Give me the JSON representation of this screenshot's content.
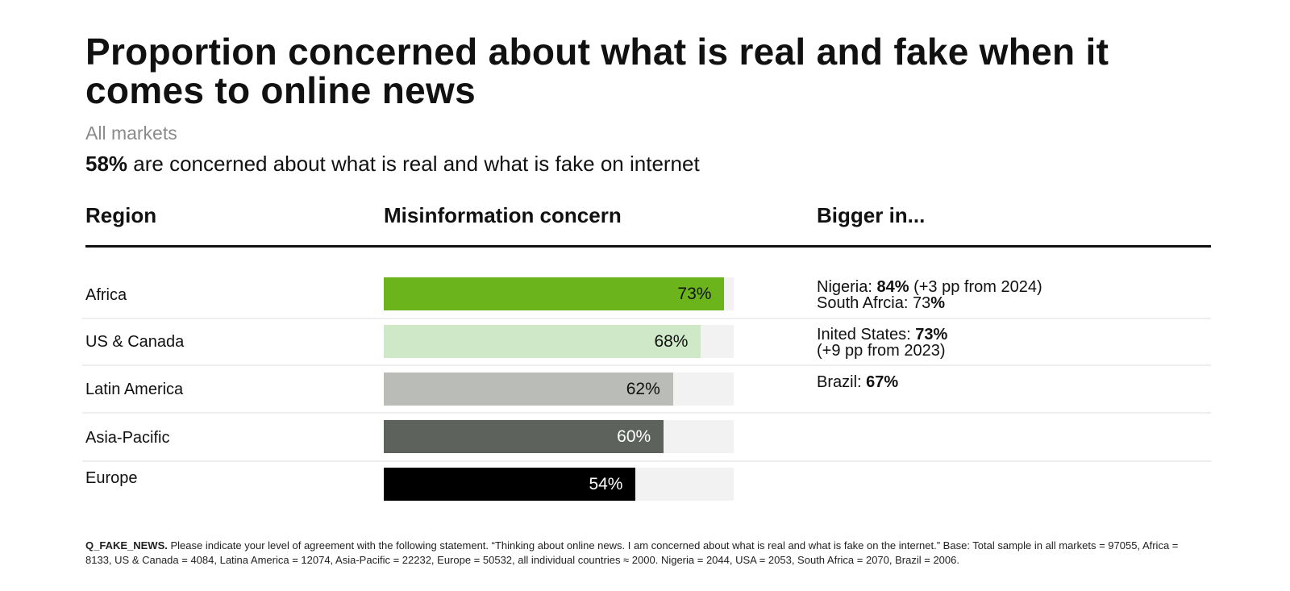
{
  "header": {
    "title": "Proportion concerned about what is real and fake when it comes to online news",
    "subtitle": "All markets",
    "summary_value": "58%",
    "summary_text": " are concerned about what is real and what is fake on internet"
  },
  "table": {
    "columns": [
      "Region",
      "Misinformation concern",
      "Bigger in..."
    ],
    "rows": [
      {
        "region": "Africa",
        "value": 73,
        "label": "73%",
        "bar_color": "#6bb41b",
        "label_color": "#111111",
        "bigger": [
          {
            "pre": "Nigeria: ",
            "bold": "84%",
            "post": " (+3 pp from 2024)"
          },
          {
            "pre": "South Afrcia: 73",
            "bold": "%",
            "post": ""
          }
        ]
      },
      {
        "region": "US & Canada",
        "value": 68,
        "label": "68%",
        "bar_color": "#cfe8c7",
        "label_color": "#111111",
        "bigger": [
          {
            "pre": "Inited States: ",
            "bold": "73%",
            "post": ""
          },
          {
            "pre": "(+9 pp from 2023)",
            "bold": "",
            "post": ""
          }
        ]
      },
      {
        "region": "Latin America",
        "value": 62,
        "label": "62%",
        "bar_color": "#babcb8",
        "label_color": "#111111",
        "bigger": [
          {
            "pre": "Brazil: ",
            "bold": "67%",
            "post": ""
          }
        ]
      },
      {
        "region": "Asia-Pacific",
        "value": 60,
        "label": "60%",
        "bar_color": "#5e625c",
        "label_color": "#ffffff",
        "bigger": []
      },
      {
        "region": "Europe",
        "value": 54,
        "label": "54%",
        "bar_color": "#000000",
        "label_color": "#ffffff",
        "bigger": []
      }
    ]
  },
  "footnote": {
    "code": "Q_FAKE_NEWS.",
    "text": " Please indicate your level of agreement with the following statement. “Thinking about online news. I am concerned about what is real and what is fake on the internet.” Base: Total sample in all markets = 97055, Africa = 8133, US & Canada = 4084, Latina America = 12074, Asia-Pacific = 22232, Europe = 50532, all individual countries ≈ 2000. Nigeria = 2044, USA = 2053, South Africa = 2070, Brazil = 2006."
  },
  "chart_data": {
    "type": "bar",
    "orientation": "horizontal",
    "title": "Proportion concerned about what is real and fake when it comes to online news",
    "subtitle": "All markets — 58% are concerned about what is real and what is fake on internet",
    "categories": [
      "Africa",
      "US & Canada",
      "Latin America",
      "Asia-Pacific",
      "Europe"
    ],
    "values": [
      73,
      68,
      62,
      60,
      54
    ],
    "unit": "%",
    "xlabel": "Misinformation concern",
    "ylabel": "Region",
    "xlim": [
      0,
      75
    ],
    "grid": false,
    "colors": [
      "#6bb41b",
      "#cfe8c7",
      "#babcb8",
      "#5e625c",
      "#000000"
    ],
    "annotations": {
      "Africa": "Nigeria: 84% (+3 pp from 2024); South Afrcia: 73%",
      "US & Canada": "Inited States: 73% (+9 pp from 2023)",
      "Latin America": "Brazil: 67%"
    }
  }
}
